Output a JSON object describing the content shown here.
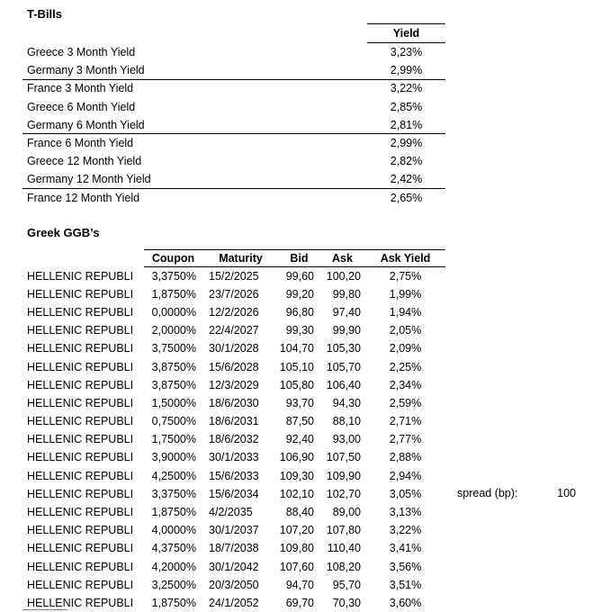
{
  "tbills": {
    "title": "T-Bills",
    "yield_header": "Yield",
    "rows": [
      {
        "label": "Greece 3 Month Yield",
        "yield": "3,23%"
      },
      {
        "label": "Germany 3 Month Yield",
        "yield": "2,99%"
      },
      {
        "label": "France 3 Month Yield",
        "yield": "3,22%"
      },
      {
        "label": "Greece 6 Month Yield",
        "yield": "2,85%"
      },
      {
        "label": "Germany 6 Month Yield",
        "yield": "2,81%"
      },
      {
        "label": "France 6 Month Yield",
        "yield": "2,99%"
      },
      {
        "label": "Greece 12 Month Yield",
        "yield": "2,82%"
      },
      {
        "label": "Germany 12 Month Yield",
        "yield": "2,42%"
      },
      {
        "label": "France 12 Month Yield",
        "yield": "2,65%"
      }
    ]
  },
  "ggb": {
    "title": "Greek GGB’s",
    "headers": {
      "coupon": "Coupon",
      "maturity": "Maturity",
      "bid": "Bid",
      "ask": "Ask",
      "ask_yield": "Ask Yield"
    },
    "rows": [
      {
        "name": "HELLENIC REPUBLI",
        "coupon": "3,3750%",
        "maturity": "15/2/2025",
        "bid": "99,60",
        "ask": "100,20",
        "ask_yield": "2,75%"
      },
      {
        "name": "HELLENIC REPUBLI",
        "coupon": "1,8750%",
        "maturity": "23/7/2026",
        "bid": "99,20",
        "ask": "99,80",
        "ask_yield": "1,99%"
      },
      {
        "name": "HELLENIC REPUBLI",
        "coupon": "0,0000%",
        "maturity": "12/2/2026",
        "bid": "96,80",
        "ask": "97,40",
        "ask_yield": "1,94%"
      },
      {
        "name": "HELLENIC REPUBLI",
        "coupon": "2,0000%",
        "maturity": "22/4/2027",
        "bid": "99,30",
        "ask": "99,90",
        "ask_yield": "2,05%"
      },
      {
        "name": "HELLENIC REPUBLI",
        "coupon": "3,7500%",
        "maturity": "30/1/2028",
        "bid": "104,70",
        "ask": "105,30",
        "ask_yield": "2,09%"
      },
      {
        "name": "HELLENIC REPUBLI",
        "coupon": "3,8750%",
        "maturity": "15/6/2028",
        "bid": "105,10",
        "ask": "105,70",
        "ask_yield": "2,25%"
      },
      {
        "name": "HELLENIC REPUBLI",
        "coupon": "3,8750%",
        "maturity": "12/3/2029",
        "bid": "105,80",
        "ask": "106,40",
        "ask_yield": "2,34%"
      },
      {
        "name": "HELLENIC REPUBLI",
        "coupon": "1,5000%",
        "maturity": "18/6/2030",
        "bid": "93,70",
        "ask": "94,30",
        "ask_yield": "2,59%"
      },
      {
        "name": "HELLENIC REPUBLI",
        "coupon": "0,7500%",
        "maturity": "18/6/2031",
        "bid": "87,50",
        "ask": "88,10",
        "ask_yield": "2,71%"
      },
      {
        "name": "HELLENIC REPUBLI",
        "coupon": "1,7500%",
        "maturity": "18/6/2032",
        "bid": "92,40",
        "ask": "93,00",
        "ask_yield": "2,77%"
      },
      {
        "name": "HELLENIC REPUBLI",
        "coupon": "3,9000%",
        "maturity": "30/1/2033",
        "bid": "106,90",
        "ask": "107,50",
        "ask_yield": "2,88%"
      },
      {
        "name": "HELLENIC REPUBLI",
        "coupon": "4,2500%",
        "maturity": "15/6/2033",
        "bid": "109,30",
        "ask": "109,90",
        "ask_yield": "2,94%"
      },
      {
        "name": "HELLENIC REPUBLI",
        "coupon": "3,3750%",
        "maturity": "15/6/2034",
        "bid": "102,10",
        "ask": "102,70",
        "ask_yield": "3,05%"
      },
      {
        "name": "HELLENIC REPUBLI",
        "coupon": "1,8750%",
        "maturity": "4/2/2035",
        "bid": "88,40",
        "ask": "89,00",
        "ask_yield": "3,13%"
      },
      {
        "name": "HELLENIC REPUBLI",
        "coupon": "4,0000%",
        "maturity": "30/1/2037",
        "bid": "107,20",
        "ask": "107,80",
        "ask_yield": "3,22%"
      },
      {
        "name": "HELLENIC REPUBLI",
        "coupon": "4,3750%",
        "maturity": "18/7/2038",
        "bid": "109,80",
        "ask": "110,40",
        "ask_yield": "3,41%"
      },
      {
        "name": "HELLENIC REPUBLI",
        "coupon": "4,2000%",
        "maturity": "30/1/2042",
        "bid": "107,60",
        "ask": "108,20",
        "ask_yield": "3,56%"
      },
      {
        "name": "HELLENIC REPUBLI",
        "coupon": "3,2500%",
        "maturity": "20/3/2050",
        "bid": "94,70",
        "ask": "95,70",
        "ask_yield": "3,51%"
      },
      {
        "name": "HELLENIC REPUBLI",
        "coupon": "1,8750%",
        "maturity": "24/1/2052",
        "bid": "69,70",
        "ask": "70,30",
        "ask_yield": "3,60%"
      }
    ]
  },
  "spread": {
    "label": "spread (bp):",
    "value": "100"
  }
}
